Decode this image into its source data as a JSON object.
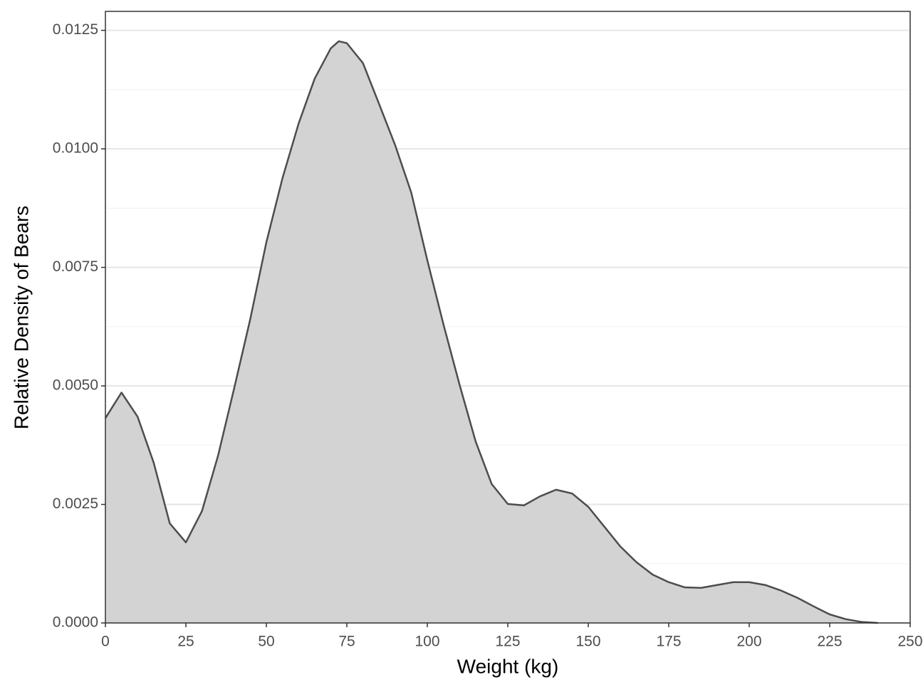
{
  "chart_data": {
    "type": "area",
    "x_label": "Weight (kg)",
    "y_label": "Relative Density of Bears",
    "x": [
      0,
      5,
      10,
      15,
      20,
      25,
      30,
      35,
      40,
      45,
      50,
      55,
      60,
      65,
      70,
      72.5,
      75,
      80,
      85,
      90,
      95,
      100,
      105,
      110,
      115,
      120,
      125,
      130,
      135,
      140,
      145,
      150,
      155,
      160,
      165,
      170,
      175,
      180,
      185,
      190,
      195,
      200,
      205,
      210,
      215,
      220,
      225,
      230,
      235,
      240
    ],
    "values": [
      0.00432,
      0.00486,
      0.00435,
      0.00338,
      0.0021,
      0.0017,
      0.00236,
      0.00353,
      0.00495,
      0.00641,
      0.00803,
      0.00938,
      0.01053,
      0.01148,
      0.01212,
      0.01227,
      0.01223,
      0.01181,
      0.01095,
      0.01008,
      0.00908,
      0.00765,
      0.0063,
      0.00503,
      0.00383,
      0.00293,
      0.00251,
      0.00248,
      0.00267,
      0.00281,
      0.00273,
      0.00245,
      0.00203,
      0.00161,
      0.00128,
      0.00102,
      0.00086,
      0.00075,
      0.00074,
      0.0008,
      0.00086,
      0.00086,
      0.0008,
      0.00068,
      0.00053,
      0.00035,
      0.00018,
      8e-05,
      2e-05,
      0
    ],
    "fill": "#d3d3d3",
    "line_color": "#4d4d4d",
    "xlim": [
      0,
      250
    ],
    "xticks": [
      0,
      25,
      50,
      75,
      100,
      125,
      150,
      175,
      200,
      225,
      250
    ],
    "ylim": [
      0,
      0.0129
    ],
    "yticks": [
      {
        "value": 0,
        "label": "0.0000"
      },
      {
        "value": 0.0025,
        "label": "0.0025"
      },
      {
        "value": 0.005,
        "label": "0.0050"
      },
      {
        "value": 0.0075,
        "label": "0.0075"
      },
      {
        "value": 0.01,
        "label": "0.0100"
      },
      {
        "value": 0.0125,
        "label": "0.0125"
      }
    ],
    "y_minor_ticks": [
      0.00125,
      0.00375,
      0.00625,
      0.00875,
      0.01125
    ],
    "grid": true
  }
}
